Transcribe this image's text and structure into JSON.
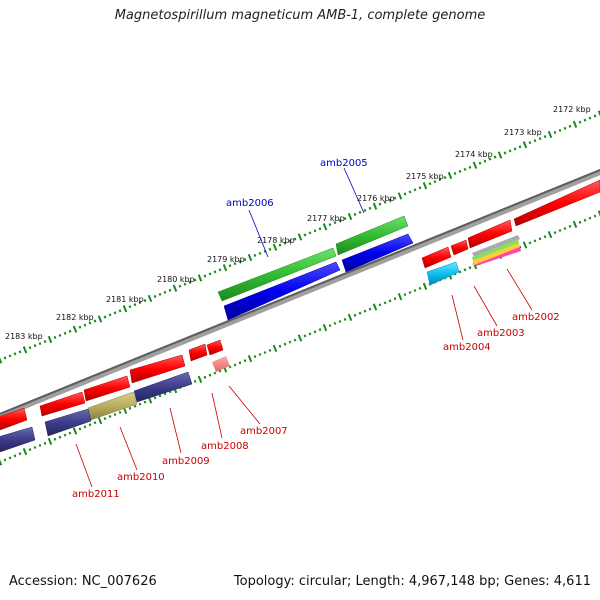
{
  "title": "Magnetospirillum magneticum AMB-1, complete genome",
  "footer": {
    "accession": "Accession: NC_007626",
    "summary": "Topology: circular; Length: 4,967,148 bp; Genes: 4,611"
  },
  "colors": {
    "backbone": "#7d7d7d",
    "tick": "#1a8a1a",
    "label_red": "#cc0000",
    "label_blue": "#0000cc"
  },
  "kbp_labels": [
    "2172 kbp",
    "2173 kbp",
    "2174 kbp",
    "2175 kbp",
    "2176 kbp",
    "2177 kbp",
    "2178 kbp",
    "2179 kbp",
    "2180 kbp",
    "2181 kbp",
    "2182 kbp",
    "2183 kbp"
  ],
  "genes": [
    {
      "name": "amb2002",
      "color": "red"
    },
    {
      "name": "amb2003",
      "color": "red"
    },
    {
      "name": "amb2004",
      "color": "red"
    },
    {
      "name": "amb2005",
      "color": "blue"
    },
    {
      "name": "amb2006",
      "color": "blue"
    },
    {
      "name": "amb2007",
      "color": "red"
    },
    {
      "name": "amb2008",
      "color": "red"
    },
    {
      "name": "amb2009",
      "color": "red"
    },
    {
      "name": "amb2010",
      "color": "red"
    },
    {
      "name": "amb2011",
      "color": "red"
    }
  ]
}
